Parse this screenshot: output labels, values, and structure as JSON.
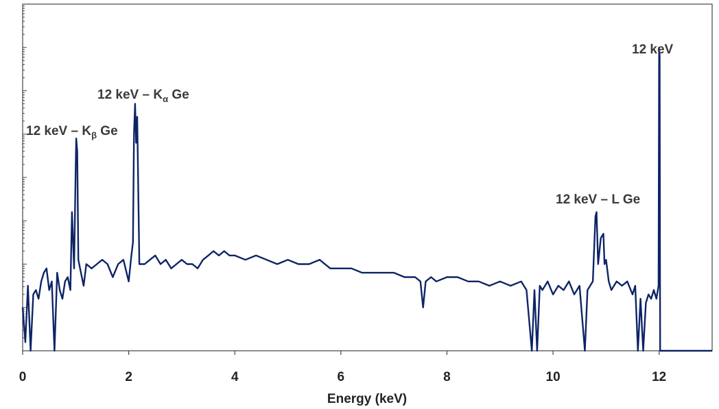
{
  "chart_data": {
    "type": "line",
    "title": "",
    "xlabel": "Energy (keV)",
    "ylabel": "",
    "xlim": [
      0,
      13
    ],
    "ylim": [
      0,
      8
    ],
    "y_scale": "log (unlabeled decades)",
    "x_ticks": [
      "0",
      "2",
      "4",
      "6",
      "8",
      "10",
      "12"
    ],
    "grid": false,
    "line_color": "#0d2466",
    "annotations": [
      {
        "id": "kbeta",
        "text": "12 keV – K",
        "sub": "β",
        "tail": " Ge",
        "x": 1.01
      },
      {
        "id": "kalpha",
        "text": "12 keV – K",
        "sub": "α",
        "tail": " Ge",
        "x": 2.12
      },
      {
        "id": "lge",
        "text": "12 keV – L Ge",
        "x": 10.82
      },
      {
        "id": "main",
        "text": "12 keV",
        "x": 12.0
      }
    ],
    "series": [
      {
        "x": [
          0.0,
          0.05,
          0.1,
          0.15,
          0.2,
          0.25,
          0.3,
          0.35,
          0.4,
          0.45,
          0.5,
          0.55,
          0.6,
          0.65,
          0.7,
          0.75,
          0.8,
          0.85,
          0.9,
          0.93,
          0.97,
          1.0,
          1.01,
          1.03,
          1.05,
          1.1,
          1.15,
          1.2,
          1.3,
          1.4,
          1.5,
          1.6,
          1.7,
          1.8,
          1.9,
          2.0,
          2.05,
          2.08,
          2.1,
          2.12,
          2.14,
          2.16,
          2.2,
          2.3,
          2.4,
          2.5,
          2.6,
          2.7,
          2.8,
          2.9,
          3.0,
          3.1,
          3.2,
          3.3,
          3.4,
          3.5,
          3.6,
          3.7,
          3.8,
          3.9,
          4.0,
          4.2,
          4.4,
          4.6,
          4.8,
          5.0,
          5.2,
          5.4,
          5.6,
          5.8,
          6.0,
          6.2,
          6.4,
          6.6,
          6.8,
          7.0,
          7.2,
          7.4,
          7.5,
          7.55,
          7.6,
          7.7,
          7.8,
          8.0,
          8.2,
          8.4,
          8.6,
          8.8,
          9.0,
          9.2,
          9.4,
          9.5,
          9.6,
          9.65,
          9.7,
          9.75,
          9.8,
          9.9,
          10.0,
          10.1,
          10.2,
          10.3,
          10.4,
          10.5,
          10.6,
          10.65,
          10.7,
          10.75,
          10.8,
          10.82,
          10.85,
          10.9,
          10.95,
          10.97,
          11.0,
          11.05,
          11.1,
          11.2,
          11.3,
          11.4,
          11.5,
          11.55,
          11.6,
          11.65,
          11.7,
          11.75,
          11.8,
          11.85,
          11.9,
          11.95,
          11.99,
          12.0,
          12.01,
          12.02,
          12.05,
          12.5,
          13.0
        ],
        "values": [
          1.0,
          0.2,
          1.5,
          0.0,
          1.3,
          1.4,
          1.2,
          1.6,
          1.8,
          1.9,
          1.4,
          1.6,
          0.0,
          1.8,
          1.4,
          1.2,
          1.6,
          1.7,
          1.4,
          3.2,
          1.9,
          4.2,
          4.9,
          4.6,
          2.1,
          1.8,
          1.5,
          2.0,
          1.9,
          2.0,
          2.1,
          2.0,
          1.7,
          2.0,
          2.1,
          1.6,
          2.2,
          2.5,
          5.0,
          5.7,
          4.8,
          5.4,
          2.0,
          2.0,
          2.1,
          2.2,
          2.0,
          2.1,
          1.9,
          2.0,
          2.1,
          2.0,
          2.0,
          1.9,
          2.1,
          2.2,
          2.3,
          2.2,
          2.3,
          2.2,
          2.2,
          2.1,
          2.2,
          2.1,
          2.0,
          2.1,
          2.0,
          2.0,
          2.1,
          1.9,
          1.9,
          1.9,
          1.8,
          1.8,
          1.8,
          1.8,
          1.7,
          1.7,
          1.6,
          1.0,
          1.6,
          1.7,
          1.6,
          1.7,
          1.7,
          1.6,
          1.6,
          1.5,
          1.6,
          1.5,
          1.6,
          1.4,
          0.0,
          1.4,
          0.0,
          1.5,
          1.4,
          1.6,
          1.3,
          1.5,
          1.4,
          1.6,
          1.3,
          1.5,
          0.0,
          1.4,
          1.5,
          1.6,
          3.1,
          3.2,
          2.0,
          2.6,
          2.7,
          2.0,
          2.1,
          1.6,
          1.4,
          1.6,
          1.5,
          1.6,
          1.3,
          1.5,
          0.0,
          1.2,
          0.0,
          1.1,
          1.3,
          1.2,
          1.4,
          1.2,
          1.5,
          7.0,
          6.8,
          0.0,
          0.0,
          0.0,
          0.0
        ]
      }
    ]
  }
}
